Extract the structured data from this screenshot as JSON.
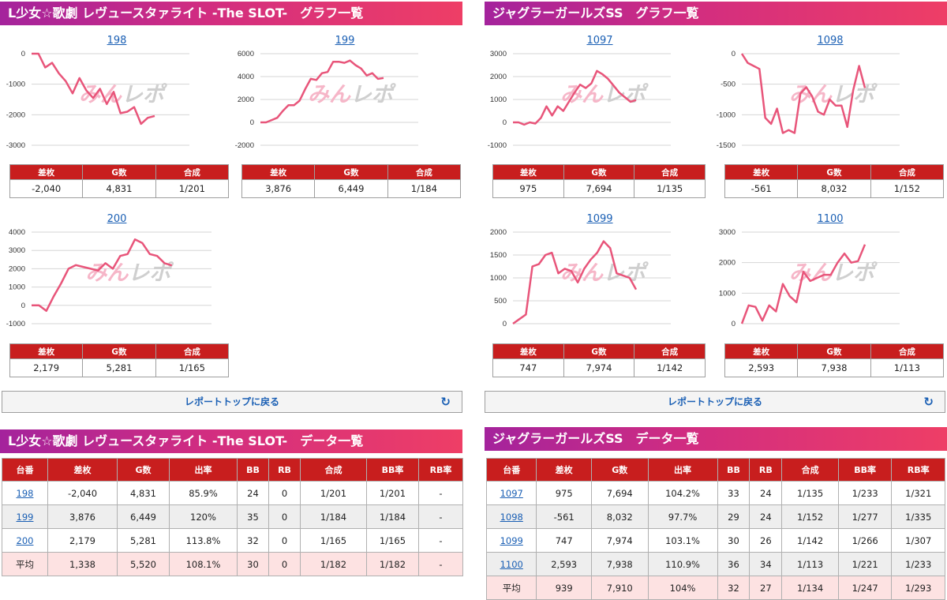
{
  "left": {
    "graph_header": "L少女☆歌劇 レヴュースタァライト -The SLOT-　グラフ一覧",
    "data_header": "L少女☆歌劇 レヴュースタァライト -The SLOT-　データ一覧",
    "back_button": "レポートトップに戻る",
    "stat_headers": [
      "差枚",
      "G数",
      "合成"
    ],
    "data_headers": [
      "台番",
      "差枚",
      "G数",
      "出率",
      "BB",
      "RB",
      "合成",
      "BB率",
      "RB率"
    ],
    "data_rows": [
      [
        "198",
        "-2,040",
        "4,831",
        "85.9%",
        "24",
        "0",
        "1/201",
        "1/201",
        "-"
      ],
      [
        "199",
        "3,876",
        "6,449",
        "120%",
        "35",
        "0",
        "1/184",
        "1/184",
        "-"
      ],
      [
        "200",
        "2,179",
        "5,281",
        "113.8%",
        "32",
        "0",
        "1/165",
        "1/165",
        "-"
      ],
      [
        "平均",
        "1,338",
        "5,520",
        "108.1%",
        "30",
        "0",
        "1/182",
        "1/182",
        "-"
      ]
    ]
  },
  "right": {
    "graph_header": "ジャグラーガールズSS　グラフ一覧",
    "data_header": "ジャグラーガールズSS　データ一覧",
    "back_button": "レポートトップに戻る",
    "stat_headers": [
      "差枚",
      "G数",
      "合成"
    ],
    "data_headers": [
      "台番",
      "差枚",
      "G数",
      "出率",
      "BB",
      "RB",
      "合成",
      "BB率",
      "RB率"
    ],
    "data_rows": [
      [
        "1097",
        "975",
        "7,694",
        "104.2%",
        "33",
        "24",
        "1/135",
        "1/233",
        "1/321"
      ],
      [
        "1098",
        "-561",
        "8,032",
        "97.7%",
        "29",
        "24",
        "1/152",
        "1/277",
        "1/335"
      ],
      [
        "1099",
        "747",
        "7,974",
        "103.1%",
        "30",
        "26",
        "1/142",
        "1/266",
        "1/307"
      ],
      [
        "1100",
        "2,593",
        "7,938",
        "110.9%",
        "36",
        "34",
        "1/113",
        "1/221",
        "1/233"
      ],
      [
        "平均",
        "939",
        "7,910",
        "104%",
        "32",
        "27",
        "1/134",
        "1/247",
        "1/293"
      ]
    ]
  },
  "watermark": {
    "left": "みん",
    "right": "レポ"
  },
  "colors": {
    "line": "#e8557a",
    "header_red": "#c81e1e",
    "link": "#1a5fb4",
    "avg_row": "#fde2e2"
  },
  "icons": {
    "back": "refresh-icon"
  },
  "chart_data": [
    {
      "type": "line",
      "title": "198",
      "ylim": [
        -3000,
        0
      ],
      "yticks": [
        0,
        -1000,
        -2000,
        -3000
      ],
      "y": [
        0,
        0,
        -450,
        -300,
        -650,
        -900,
        -1300,
        -800,
        -1200,
        -1450,
        -1150,
        -1650,
        -1250,
        -1950,
        -1900,
        -1750,
        -2300,
        -2100,
        -2040
      ],
      "stats": [
        "-2,040",
        "4,831",
        "1/201"
      ]
    },
    {
      "type": "line",
      "title": "199",
      "ylim": [
        -2000,
        6000
      ],
      "yticks": [
        6000,
        4000,
        2000,
        0,
        -2000
      ],
      "y": [
        0,
        0,
        200,
        400,
        1000,
        1500,
        1500,
        1900,
        2900,
        3800,
        3700,
        4300,
        4400,
        5300,
        5300,
        5200,
        5400,
        5000,
        4700,
        4100,
        4300,
        3800,
        3876
      ],
      "stats": [
        "3,876",
        "6,449",
        "1/184"
      ]
    },
    {
      "type": "line",
      "title": "200",
      "ylim": [
        -1000,
        4000
      ],
      "yticks": [
        4000,
        3000,
        2000,
        1000,
        0,
        -1000
      ],
      "y": [
        0,
        0,
        -300,
        500,
        1200,
        2000,
        2200,
        2100,
        2000,
        1900,
        2300,
        2000,
        2700,
        2800,
        3600,
        3400,
        2800,
        2700,
        2300,
        2179
      ],
      "stats": [
        "2,179",
        "5,281",
        "1/165"
      ]
    },
    {
      "type": "line",
      "title": "1097",
      "ylim": [
        -1000,
        3000
      ],
      "yticks": [
        3000,
        2000,
        1000,
        0,
        -1000
      ],
      "y": [
        0,
        0,
        -100,
        0,
        -50,
        200,
        700,
        300,
        700,
        500,
        900,
        1300,
        1650,
        1500,
        1700,
        2250,
        2100,
        1900,
        1600,
        1300,
        1100,
        900,
        975
      ],
      "stats": [
        "975",
        "7,694",
        "1/135"
      ]
    },
    {
      "type": "line",
      "title": "1098",
      "ylim": [
        -1500,
        0
      ],
      "yticks": [
        0,
        -500,
        -1000,
        -1500
      ],
      "y": [
        0,
        -150,
        -200,
        -250,
        -1050,
        -1150,
        -900,
        -1300,
        -1250,
        -1300,
        -650,
        -550,
        -700,
        -950,
        -1000,
        -750,
        -850,
        -850,
        -1200,
        -600,
        -200,
        -561
      ],
      "stats": [
        "-561",
        "8,032",
        "1/152"
      ]
    },
    {
      "type": "line",
      "title": "1099",
      "ylim": [
        0,
        2000
      ],
      "yticks": [
        2000,
        1500,
        1000,
        500,
        0
      ],
      "y": [
        0,
        100,
        200,
        1250,
        1300,
        1500,
        1550,
        1100,
        1200,
        1150,
        900,
        1200,
        1400,
        1550,
        1800,
        1650,
        1100,
        1050,
        1000,
        747
      ],
      "stats": [
        "747",
        "7,974",
        "1/142"
      ]
    },
    {
      "type": "line",
      "title": "1100",
      "ylim": [
        0,
        3000
      ],
      "yticks": [
        3000,
        2000,
        1000,
        0
      ],
      "y": [
        0,
        600,
        550,
        100,
        600,
        400,
        1300,
        900,
        700,
        1700,
        1400,
        1500,
        1600,
        1600,
        2000,
        2300,
        2000,
        2050,
        2593
      ],
      "stats": [
        "2,593",
        "7,938",
        "1/113"
      ]
    }
  ]
}
